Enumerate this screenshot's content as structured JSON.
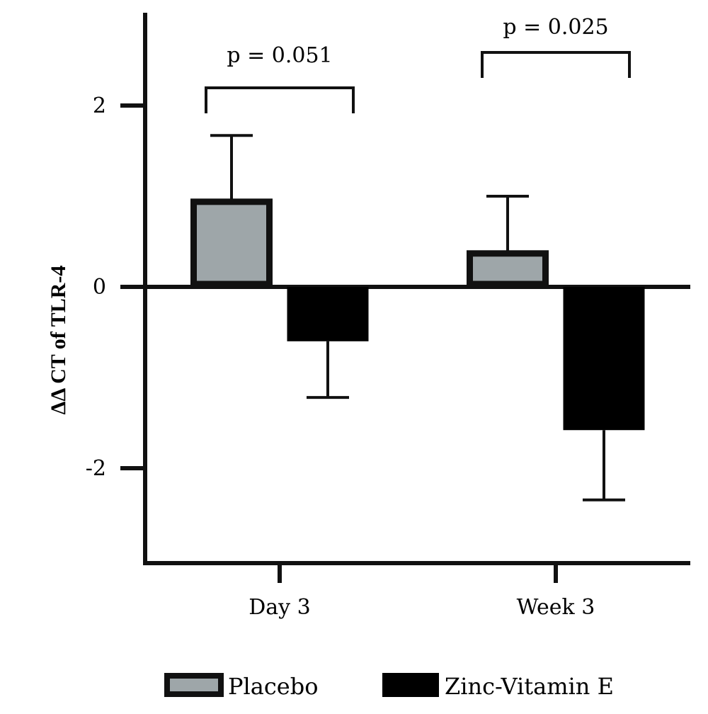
{
  "chart_data": {
    "type": "bar",
    "title": "",
    "xlabel": "",
    "ylabel": "ΔΔ CT of TLR-4",
    "categories": [
      "Day 3",
      "Week 3"
    ],
    "ylim": [
      -3,
      3
    ],
    "yticks": [
      -2,
      0,
      2
    ],
    "ytick_labels": [
      "-2",
      "0",
      "2"
    ],
    "grid": false,
    "legend_position": "bottom",
    "series": [
      {
        "name": "Placebo",
        "values": [
          0.97,
          0.4
        ],
        "errors": [
          0.7,
          0.6
        ],
        "color": "#9ea6a9",
        "edge": "#111111"
      },
      {
        "name": "Zinc-Vitamin E",
        "values": [
          -0.6,
          -1.58
        ],
        "errors": [
          0.62,
          0.77
        ],
        "color": "#000000",
        "edge": "#000000"
      }
    ],
    "annotations": [
      {
        "category": "Day 3",
        "text": "p = 0.051"
      },
      {
        "category": "Week 3",
        "text": "p = 0.025"
      }
    ]
  }
}
